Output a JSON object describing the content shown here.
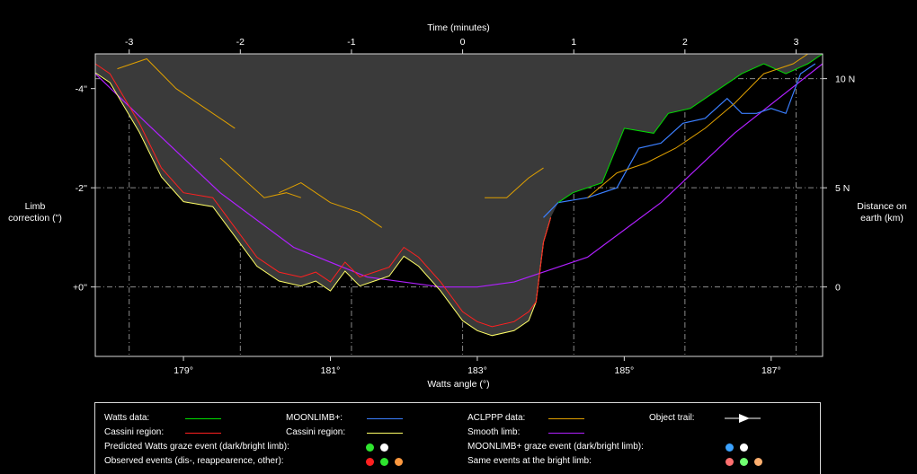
{
  "chart_data": {
    "type": "line",
    "top_axis": {
      "label": "Time (minutes)",
      "ticks": [
        "-3",
        "-2",
        "-1",
        "0",
        "1",
        "2",
        "3"
      ]
    },
    "x_axis": {
      "label": "Watts angle (°)",
      "ticks": [
        "179°",
        "181°",
        "183°",
        "185°",
        "187°"
      ],
      "range": [
        177.8,
        187.7
      ]
    },
    "left_axis": {
      "label": "Limb correction (\")",
      "ticks": [
        "-4''",
        "-2''",
        "+0''"
      ],
      "range": [
        -4.7,
        1.4
      ]
    },
    "right_axis": {
      "label": "Distance on earth (km)",
      "ticks": [
        "10 N",
        "5 N",
        "0"
      ]
    },
    "grid": "dashed",
    "colors": {
      "watts": "#00dd00",
      "cassini": "#ff2020",
      "cassini_plus": "#ffff66",
      "moonlimb": "#3b7fff",
      "aclppp": "#e0a000",
      "smooth": "#b020ff",
      "fill": "#3a3a3a"
    },
    "series": {
      "watts": {
        "x": [
          184.1,
          184.3,
          184.7,
          185.0,
          185.4,
          185.6,
          185.9,
          186.2,
          186.6,
          186.9,
          187.2,
          187.5,
          187.7
        ],
        "y": [
          -1.7,
          -1.9,
          -2.1,
          -3.2,
          -3.1,
          -3.5,
          -3.6,
          -3.9,
          -4.3,
          -4.5,
          -4.3,
          -4.5,
          -4.7
        ]
      },
      "moonlimb": {
        "x": [
          183.9,
          184.1,
          184.5,
          184.9,
          185.2,
          185.5,
          185.8,
          186.1,
          186.4,
          186.6,
          186.8,
          187.0,
          187.2,
          187.4,
          187.6
        ],
        "y": [
          -1.4,
          -1.7,
          -1.8,
          -2.0,
          -2.8,
          -2.9,
          -3.3,
          -3.4,
          -3.8,
          -3.5,
          -3.5,
          -3.6,
          -3.5,
          -4.3,
          -4.5
        ]
      },
      "smooth": {
        "x": [
          177.8,
          178.5,
          179.5,
          180.5,
          181.5,
          182.5,
          183.0,
          183.5,
          184.5,
          185.5,
          186.5,
          187.7
        ],
        "y": [
          -4.3,
          -3.3,
          -1.9,
          -0.8,
          -0.2,
          0.0,
          0.0,
          -0.1,
          -0.6,
          -1.7,
          -3.1,
          -4.5
        ]
      }
    }
  },
  "legend": {
    "watts_data": "Watts data:",
    "cassini_region_1": "Cassini region:",
    "moonlimb_plus": "MOONLIMB+:",
    "cassini_region_2": "Cassini region:",
    "aclppp_data": "ACLPPP data:",
    "smooth_limb": "Smooth limb:",
    "object_trail": "Object trail:",
    "predicted_watts_graze": "Predicted Watts graze event (dark/bright limb):",
    "moonlimb_graze": "MOONLIMB+ graze event (dark/bright limb):",
    "observed_events": "Observed events (dis-, reappearence, other):",
    "same_events_bright": "Same events at the bright limb:"
  }
}
